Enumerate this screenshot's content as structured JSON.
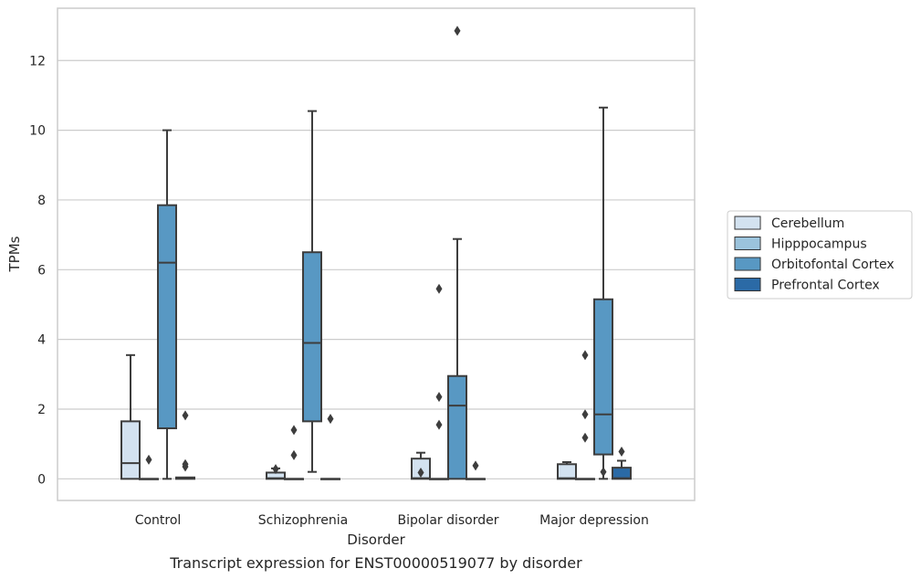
{
  "chart_data": {
    "type": "box",
    "caption": "Transcript expression for ENST00000519077 by disorder",
    "xlabel": "Disorder",
    "ylabel": "TPMs",
    "ylim": [
      -0.62,
      13.5
    ],
    "yticks": [
      0,
      2,
      4,
      6,
      8,
      10,
      12
    ],
    "grid": true,
    "legend_position": "right",
    "categories": [
      "Control",
      "Schizophrenia",
      "Bipolar disorder",
      "Major depression"
    ],
    "series": [
      {
        "name": "Cerebellum",
        "color": "#d3e2f0",
        "boxes": [
          {
            "q1": 0,
            "median": 0.45,
            "q3": 1.65,
            "whisker_low": 0,
            "whisker_high": 3.55
          },
          {
            "q1": 0,
            "median": 0.02,
            "q3": 0.18,
            "whisker_low": 0,
            "whisker_high": 0.3
          },
          {
            "q1": 0,
            "median": 0.02,
            "q3": 0.58,
            "whisker_low": 0,
            "whisker_high": 0.75
          },
          {
            "q1": 0,
            "median": 0.02,
            "q3": 0.42,
            "whisker_low": 0,
            "whisker_high": 0.48
          }
        ]
      },
      {
        "name": "Hipppocampus",
        "color": "#9bc3dc",
        "boxes": [
          {
            "q1": 0,
            "median": 0,
            "q3": 0,
            "whisker_low": 0,
            "whisker_high": 0,
            "outliers": [
              0.55
            ]
          },
          {
            "q1": 0,
            "median": 0,
            "q3": 0,
            "whisker_low": 0,
            "whisker_high": 0,
            "outliers": [
              0.68,
              1.4
            ]
          },
          {
            "q1": 0,
            "median": 0,
            "q3": 0,
            "whisker_low": 0,
            "whisker_high": 0,
            "outliers": [
              1.55,
              2.35,
              5.45
            ]
          },
          {
            "q1": 0,
            "median": 0,
            "q3": 0,
            "whisker_low": 0,
            "whisker_high": 0,
            "outliers": [
              1.18,
              1.85,
              3.55
            ]
          }
        ]
      },
      {
        "name": "Orbitofontal Cortex",
        "color": "#5898c3",
        "boxes": [
          {
            "q1": 1.45,
            "median": 6.2,
            "q3": 7.85,
            "whisker_low": 0,
            "whisker_high": 10.0
          },
          {
            "q1": 1.65,
            "median": 3.9,
            "q3": 6.5,
            "whisker_low": 0.2,
            "whisker_high": 10.55
          },
          {
            "q1": 0,
            "median": 2.1,
            "q3": 2.95,
            "whisker_low": 0,
            "whisker_high": 6.88,
            "outliers": [
              12.85
            ]
          },
          {
            "q1": 0.7,
            "median": 1.85,
            "q3": 5.15,
            "whisker_low": 0,
            "whisker_high": 10.65
          }
        ]
      },
      {
        "name": "Prefrontal Cortex",
        "color": "#2b6aa6",
        "boxes": [
          {
            "q1": 0,
            "median": 0.02,
            "q3": 0.04,
            "whisker_low": 0,
            "whisker_high": 0.04,
            "outliers": [
              0.35,
              0.42,
              1.82
            ]
          },
          {
            "q1": 0,
            "median": 0,
            "q3": 0,
            "whisker_low": 0,
            "whisker_high": 0,
            "outliers": [
              1.72
            ]
          },
          {
            "q1": 0,
            "median": 0,
            "q3": 0,
            "whisker_low": 0,
            "whisker_high": 0,
            "outliers": [
              0.38
            ]
          },
          {
            "q1": 0,
            "median": 0.02,
            "q3": 0.32,
            "whisker_low": 0,
            "whisker_high": 0.52,
            "outliers": [
              0.78
            ]
          }
        ]
      }
    ],
    "extra_outliers": [
      {
        "category_index": 1,
        "x_offset_box": 0.5,
        "value": 0.28
      },
      {
        "category_index": 2,
        "x_offset_box": 0.5,
        "value": 0.18
      },
      {
        "category_index": 3,
        "x_offset_box": 2.5,
        "value": 0.2
      }
    ]
  }
}
